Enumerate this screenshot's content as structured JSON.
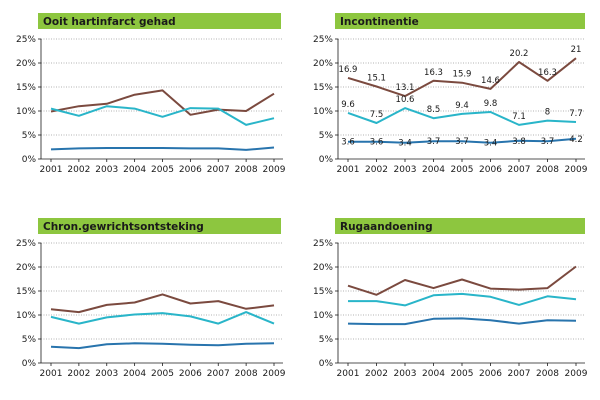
{
  "chart_data": [
    {
      "type": "line",
      "title": "Ooit hartinfarct gehad",
      "x": [
        "2001",
        "2002",
        "2003",
        "2004",
        "2005",
        "2006",
        "2007",
        "2008",
        "2009"
      ],
      "ylim": [
        0,
        25
      ],
      "yticks": [
        "0%",
        "5%",
        "10%",
        "15%",
        "20%",
        "25%"
      ],
      "series": [
        {
          "color": "#7b4a3f",
          "values": [
            9.9,
            11.0,
            11.5,
            13.4,
            14.3,
            9.2,
            10.3,
            10.0,
            13.6
          ]
        },
        {
          "color": "#29b5c9",
          "values": [
            10.5,
            9.0,
            11.0,
            10.5,
            8.8,
            10.6,
            10.5,
            7.1,
            8.5
          ]
        },
        {
          "color": "#2874ad",
          "values": [
            2.0,
            2.2,
            2.3,
            2.3,
            2.3,
            2.2,
            2.2,
            1.9,
            2.4
          ]
        }
      ]
    },
    {
      "type": "line",
      "title": "Incontinentie",
      "x": [
        "2001",
        "2002",
        "2003",
        "2004",
        "2005",
        "2006",
        "2007",
        "2008",
        "2009"
      ],
      "ylim": [
        0,
        25
      ],
      "yticks": [
        "0%",
        "5%",
        "10%",
        "15%",
        "20%",
        "25%"
      ],
      "series": [
        {
          "color": "#7b4a3f",
          "values": [
            16.9,
            15.1,
            13.1,
            16.3,
            15.9,
            14.6,
            20.2,
            16.3,
            21
          ],
          "labels": [
            "16.9",
            "15.1",
            "13.1",
            "16.3",
            "15.9",
            "14.6",
            "20.2",
            "16.3",
            "21"
          ]
        },
        {
          "color": "#29b5c9",
          "values": [
            9.6,
            7.5,
            10.6,
            8.5,
            9.4,
            9.8,
            7.1,
            8,
            7.7
          ],
          "labels": [
            "9.6",
            "7.5",
            "10.6",
            "8.5",
            "9.4",
            "9.8",
            "7.1",
            "8",
            "7.7"
          ]
        },
        {
          "color": "#2874ad",
          "values": [
            3.6,
            3.6,
            3.4,
            3.7,
            3.7,
            3.4,
            3.8,
            3.7,
            4.2
          ],
          "labels": [
            "3.6",
            "3.6",
            "3.4",
            "3.7",
            "3.7",
            "3.4",
            "3.8",
            "3.7",
            "4.2"
          ]
        }
      ]
    },
    {
      "type": "line",
      "title": "Chron.gewrichtsontsteking",
      "x": [
        "2001",
        "2002",
        "2003",
        "2004",
        "2005",
        "2006",
        "2007",
        "2008",
        "2009"
      ],
      "ylim": [
        0,
        25
      ],
      "yticks": [
        "0%",
        "5%",
        "10%",
        "15%",
        "20%",
        "25%"
      ],
      "series": [
        {
          "color": "#7b4a3f",
          "values": [
            11.2,
            10.6,
            12.1,
            12.6,
            14.3,
            12.4,
            12.9,
            11.3,
            12.0
          ]
        },
        {
          "color": "#29b5c9",
          "values": [
            9.6,
            8.2,
            9.5,
            10.1,
            10.4,
            9.7,
            8.2,
            10.6,
            8.2
          ]
        },
        {
          "color": "#2874ad",
          "values": [
            3.4,
            3.1,
            3.9,
            4.1,
            4.0,
            3.8,
            3.7,
            4.0,
            4.1
          ]
        }
      ]
    },
    {
      "type": "line",
      "title": "Rugaandoening",
      "x": [
        "2001",
        "2002",
        "2003",
        "2004",
        "2005",
        "2006",
        "2007",
        "2008",
        "2009"
      ],
      "ylim": [
        0,
        25
      ],
      "yticks": [
        "0%",
        "5%",
        "10%",
        "15%",
        "20%",
        "25%"
      ],
      "series": [
        {
          "color": "#7b4a3f",
          "values": [
            16.1,
            14.2,
            17.3,
            15.6,
            17.4,
            15.5,
            15.3,
            15.6,
            20.1
          ]
        },
        {
          "color": "#29b5c9",
          "values": [
            12.9,
            12.9,
            12.0,
            14.1,
            14.4,
            13.8,
            12.1,
            13.9,
            13.3
          ]
        },
        {
          "color": "#2874ad",
          "values": [
            8.2,
            8.1,
            8.1,
            9.2,
            9.3,
            8.9,
            8.2,
            8.9,
            8.8
          ]
        }
      ]
    }
  ],
  "colors": {
    "title_bar": "#8dc63f",
    "axis": "#1a1a1a",
    "grid": "#9a9a9a"
  }
}
